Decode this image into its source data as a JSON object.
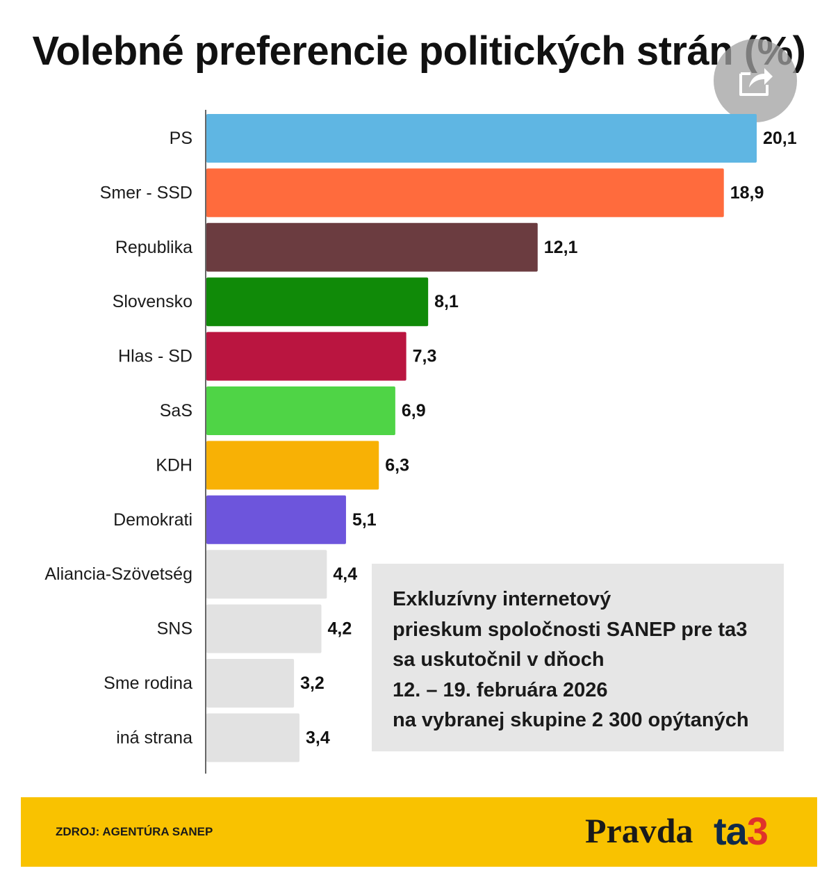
{
  "chart_data": {
    "type": "bar",
    "orientation": "horizontal",
    "title": "Volebné preferencie politických strán (%)",
    "categories": [
      "PS",
      "Smer - SSD",
      "Republika",
      "Slovensko",
      "Hlas - SD",
      "SaS",
      "KDH",
      "Demokrati",
      "Aliancia-Szövetség",
      "SNS",
      "Sme rodina",
      "iná strana"
    ],
    "values": [
      20.1,
      18.9,
      12.1,
      8.1,
      7.3,
      6.9,
      6.3,
      5.1,
      4.4,
      4.2,
      3.2,
      3.4
    ],
    "value_labels": [
      "20,1",
      "18,9",
      "12,1",
      "8,1",
      "7,3",
      "6,9",
      "6,3",
      "5,1",
      "4,4",
      "4,2",
      "3,2",
      "3,4"
    ],
    "colors": [
      "#5fb6e3",
      "#ff6b3d",
      "#6b3c40",
      "#108a08",
      "#ba1540",
      "#4fd446",
      "#f8b105",
      "#6d55dc",
      "#e2e2e2",
      "#e2e2e2",
      "#e2e2e2",
      "#e2e2e2"
    ],
    "xlim": [
      0,
      20.1
    ],
    "xlabel": "",
    "ylabel": "",
    "grid": false
  },
  "note": {
    "lines": [
      "Exkluzívny internetový",
      "prieskum spoločnosti SANEP pre ta3",
      "sa uskutočnil v dňoch",
      "12. – 19. februára 2026",
      "na vybranej skupine 2 300 opýtaných"
    ]
  },
  "footer": {
    "source": "ZDROJ: AGENTÚRA SANEP",
    "logo_pravda": "Pravda",
    "logo_ta3_prefix": "ta",
    "logo_ta3_suffix": "3"
  },
  "icons": {
    "share": "share-icon"
  }
}
